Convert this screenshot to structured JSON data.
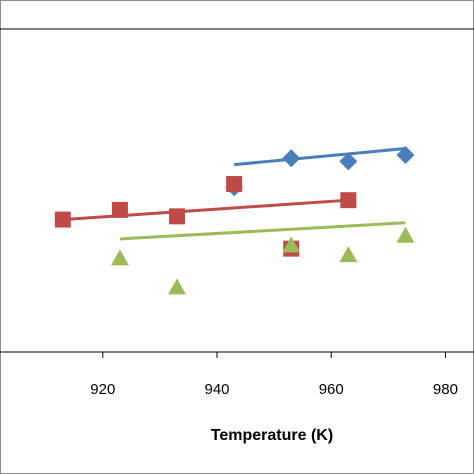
{
  "chart_data": {
    "type": "scatter",
    "title": "",
    "xlabel": "Temperature (K)",
    "ylabel": "",
    "xlim": [
      902,
      985
    ],
    "ylim": [
      0,
      10
    ],
    "x_ticks": [
      920,
      940,
      960,
      980
    ],
    "grid": false,
    "legend": "none",
    "series": [
      {
        "marker": "diamond",
        "color": "#4a7ebb",
        "points": [
          [
            943,
            5.1
          ],
          [
            953,
            6.0
          ],
          [
            963,
            5.9
          ],
          [
            973,
            6.1
          ]
        ],
        "trendline": [
          [
            943,
            5.8
          ],
          [
            973,
            6.3
          ]
        ]
      },
      {
        "marker": "square",
        "color": "#be4b48",
        "points": [
          [
            913,
            4.1
          ],
          [
            923,
            4.4
          ],
          [
            933,
            4.2
          ],
          [
            943,
            5.2
          ],
          [
            953,
            3.2
          ],
          [
            963,
            4.7
          ]
        ],
        "trendline": [
          [
            913,
            4.1
          ],
          [
            963,
            4.7
          ]
        ]
      },
      {
        "marker": "triangle",
        "color": "#9bbb59",
        "points": [
          [
            923,
            2.9
          ],
          [
            933,
            2.0
          ],
          [
            953,
            3.3
          ],
          [
            963,
            3.0
          ],
          [
            973,
            3.6
          ]
        ],
        "trendline": [
          [
            923,
            3.5
          ],
          [
            973,
            4.0
          ]
        ]
      }
    ]
  }
}
